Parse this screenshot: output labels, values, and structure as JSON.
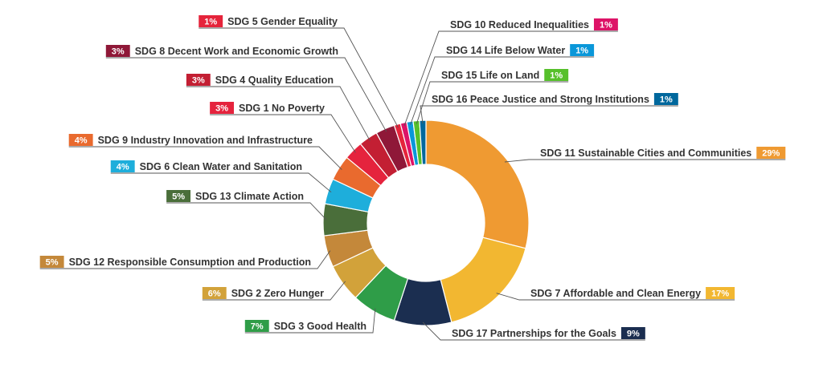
{
  "chart_data": {
    "type": "pie",
    "categories": [
      "SDG 11 Sustainable Cities and Communities",
      "SDG 7 Affordable and Clean Energy",
      "SDG 17 Partnerships for the Goals",
      "SDG 3 Good Health",
      "SDG 2 Zero Hunger",
      "SDG 12 Responsible Consumption and Production",
      "SDG 13 Climate Action",
      "SDG 6 Clean Water and Sanitation",
      "SDG 9 Industry Innovation and Infrastructure",
      "SDG 1 No Poverty",
      "SDG 4 Quality Education",
      "SDG 8 Decent Work and Economic Growth",
      "SDG 5 Gender Equality",
      "SDG 10 Reduced Inequalities",
      "SDG 14 Life Below Water",
      "SDG 15 Life on Land",
      "SDG 16 Peace Justice and Strong Institutions"
    ],
    "values": [
      29,
      17,
      9,
      7,
      6,
      5,
      5,
      4,
      4,
      3,
      3,
      3,
      1,
      1,
      1,
      1,
      1
    ],
    "value_labels": [
      "29%",
      "17%",
      "9%",
      "7%",
      "6%",
      "5%",
      "5%",
      "4%",
      "4%",
      "3%",
      "3%",
      "3%",
      "1%",
      "1%",
      "1%",
      "1%",
      "1%"
    ],
    "colors": [
      "#ef9a32",
      "#f2b731",
      "#1b2e50",
      "#2f9d48",
      "#d2a23a",
      "#c4883a",
      "#4a6e3a",
      "#1eaedb",
      "#e96a2e",
      "#e5233d",
      "#c31f33",
      "#8f1838",
      "#e5243b",
      "#dd1367",
      "#0a97d9",
      "#56c02b",
      "#00689d"
    ],
    "donut": true,
    "title": "",
    "legend": "none"
  }
}
